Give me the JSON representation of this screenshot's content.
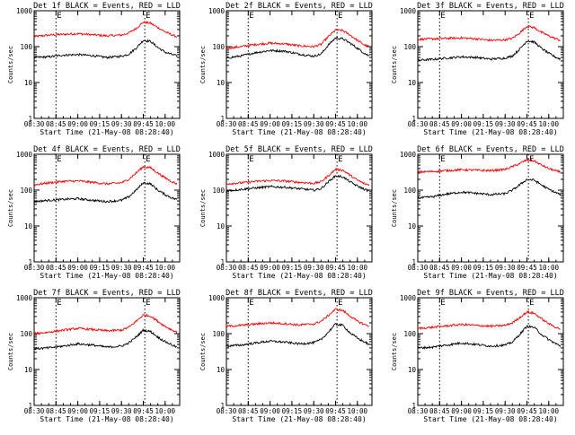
{
  "page": {
    "panel_title_suffix": "BLACK = Events, RED = LLD",
    "xlabel": "Start Time (21-May-08 08:28:40)",
    "ylabel": "Counts/sec",
    "marker_glyph": "E",
    "colors": {
      "events": "#000000",
      "lld": "#ff0000",
      "axis": "#000000",
      "background": "#ffffff"
    }
  },
  "chart_data": [
    {
      "type": "line",
      "panel": 1,
      "title": "Det 1f BLACK = Events, RED = LLD",
      "xlabel": "Start Time (21-May-08 08:28:40)",
      "ylabel": "Counts/sec",
      "yscale": "log",
      "ylim": [
        1,
        1000
      ],
      "xlim": [
        "08:30",
        "10:10"
      ],
      "x_ticks": [
        "08:30",
        "08:45",
        "09:00",
        "09:15",
        "09:30",
        "09:45",
        "10:00"
      ],
      "y_ticks": [
        "1",
        "10",
        "100",
        "1000"
      ],
      "vlines": [
        "08:45",
        "09:46"
      ],
      "markers": [
        "E",
        "E"
      ],
      "x": [
        "08:30",
        "08:40",
        "08:50",
        "09:00",
        "09:10",
        "09:20",
        "09:30",
        "09:35",
        "09:40",
        "09:45",
        "09:50",
        "09:55",
        "10:00",
        "10:05",
        "10:08"
      ],
      "series": [
        {
          "name": "LLD",
          "color": "#ff0000",
          "values": [
            190,
            210,
            220,
            230,
            215,
            200,
            210,
            240,
            320,
            480,
            450,
            340,
            260,
            210,
            190
          ]
        },
        {
          "name": "Events",
          "color": "#000000",
          "values": [
            50,
            52,
            58,
            60,
            56,
            50,
            54,
            62,
            90,
            150,
            140,
            95,
            70,
            60,
            55
          ]
        }
      ]
    },
    {
      "type": "line",
      "panel": 2,
      "title": "Det 2f BLACK = Events, RED = LLD",
      "xlabel": "Start Time (21-May-08 08:28:40)",
      "ylabel": "Counts/sec",
      "yscale": "log",
      "ylim": [
        1,
        1000
      ],
      "xlim": [
        "08:30",
        "10:10"
      ],
      "x_ticks": [
        "08:30",
        "08:45",
        "09:00",
        "09:15",
        "09:30",
        "09:45",
        "10:00"
      ],
      "y_ticks": [
        "1",
        "10",
        "100",
        "1000"
      ],
      "vlines": [
        "08:45",
        "09:46"
      ],
      "markers": [
        "E",
        "E"
      ],
      "x": [
        "08:30",
        "08:40",
        "08:50",
        "09:00",
        "09:10",
        "09:20",
        "09:30",
        "09:35",
        "09:40",
        "09:45",
        "09:50",
        "09:55",
        "10:00",
        "10:05",
        "10:08"
      ],
      "series": [
        {
          "name": "LLD",
          "color": "#ff0000",
          "values": [
            90,
            100,
            115,
            125,
            120,
            105,
            100,
            115,
            190,
            290,
            280,
            210,
            150,
            110,
            100
          ]
        },
        {
          "name": "Events",
          "color": "#000000",
          "values": [
            48,
            55,
            68,
            78,
            75,
            62,
            54,
            62,
            110,
            175,
            165,
            125,
            90,
            65,
            55
          ]
        }
      ]
    },
    {
      "type": "line",
      "panel": 3,
      "title": "Det 3f BLACK = Events, RED = LLD",
      "xlabel": "Start Time (21-May-08 08:28:40)",
      "ylabel": "Counts/sec",
      "yscale": "log",
      "ylim": [
        1,
        1000
      ],
      "xlim": [
        "08:30",
        "10:10"
      ],
      "x_ticks": [
        "08:30",
        "08:45",
        "09:00",
        "09:15",
        "09:30",
        "09:45",
        "10:00"
      ],
      "y_ticks": [
        "1",
        "10",
        "100",
        "1000"
      ],
      "vlines": [
        "08:45",
        "09:46"
      ],
      "markers": [
        "E",
        "E"
      ],
      "x": [
        "08:30",
        "08:40",
        "08:50",
        "09:00",
        "09:10",
        "09:20",
        "09:30",
        "09:35",
        "09:40",
        "09:45",
        "09:50",
        "09:55",
        "10:00",
        "10:05",
        "10:08"
      ],
      "series": [
        {
          "name": "LLD",
          "color": "#ff0000",
          "values": [
            160,
            165,
            170,
            175,
            165,
            150,
            155,
            170,
            240,
            370,
            340,
            250,
            200,
            165,
            150
          ]
        },
        {
          "name": "Events",
          "color": "#000000",
          "values": [
            42,
            44,
            48,
            52,
            50,
            45,
            48,
            55,
            85,
            145,
            135,
            90,
            65,
            50,
            45
          ]
        }
      ]
    },
    {
      "type": "line",
      "panel": 4,
      "title": "Det 4f BLACK = Events, RED = LLD",
      "xlabel": "Start Time (21-May-08 08:28:40)",
      "ylabel": "Counts/sec",
      "yscale": "log",
      "ylim": [
        1,
        1000
      ],
      "xlim": [
        "08:30",
        "10:10"
      ],
      "x_ticks": [
        "08:30",
        "08:45",
        "09:00",
        "09:15",
        "09:30",
        "09:45",
        "10:00"
      ],
      "y_ticks": [
        "1",
        "10",
        "100",
        "1000"
      ],
      "vlines": [
        "08:45",
        "09:46"
      ],
      "markers": [
        "E",
        "E"
      ],
      "x": [
        "08:30",
        "08:40",
        "08:50",
        "09:00",
        "09:10",
        "09:20",
        "09:30",
        "09:35",
        "09:40",
        "09:45",
        "09:50",
        "09:55",
        "10:00",
        "10:05",
        "10:08"
      ],
      "series": [
        {
          "name": "LLD",
          "color": "#ff0000",
          "values": [
            140,
            160,
            175,
            180,
            165,
            150,
            160,
            200,
            300,
            450,
            420,
            300,
            220,
            170,
            150
          ]
        },
        {
          "name": "Events",
          "color": "#000000",
          "values": [
            48,
            52,
            55,
            58,
            52,
            48,
            52,
            65,
            100,
            160,
            150,
            100,
            75,
            60,
            55
          ]
        }
      ]
    },
    {
      "type": "line",
      "panel": 5,
      "title": "Det 5f BLACK = Events, RED = LLD",
      "xlabel": "Start Time (21-May-08 08:28:40)",
      "ylabel": "Counts/sec",
      "yscale": "log",
      "ylim": [
        1,
        1000
      ],
      "xlim": [
        "08:30",
        "10:10"
      ],
      "x_ticks": [
        "08:30",
        "08:45",
        "09:00",
        "09:15",
        "09:30",
        "09:45",
        "10:00"
      ],
      "y_ticks": [
        "1",
        "10",
        "100",
        "1000"
      ],
      "vlines": [
        "08:45",
        "09:46"
      ],
      "markers": [
        "E",
        "E"
      ],
      "x": [
        "08:30",
        "08:40",
        "08:50",
        "09:00",
        "09:10",
        "09:20",
        "09:30",
        "09:35",
        "09:40",
        "09:45",
        "09:50",
        "09:55",
        "10:00",
        "10:05",
        "10:08"
      ],
      "series": [
        {
          "name": "LLD",
          "color": "#ff0000",
          "values": [
            150,
            160,
            175,
            185,
            180,
            165,
            155,
            170,
            250,
            380,
            360,
            260,
            190,
            150,
            140
          ]
        },
        {
          "name": "Events",
          "color": "#000000",
          "values": [
            95,
            105,
            115,
            125,
            120,
            110,
            100,
            110,
            170,
            250,
            235,
            170,
            130,
            105,
            95
          ]
        }
      ]
    },
    {
      "type": "line",
      "panel": 6,
      "title": "Det 6f BLACK = Events, RED = LLD",
      "xlabel": "Start Time (21-May-08 08:28:40)",
      "ylabel": "Counts/sec",
      "yscale": "log",
      "ylim": [
        1,
        1000
      ],
      "xlim": [
        "08:30",
        "10:10"
      ],
      "x_ticks": [
        "08:30",
        "08:45",
        "09:00",
        "09:15",
        "09:30",
        "09:45",
        "10:00"
      ],
      "y_ticks": [
        "1",
        "10",
        "100",
        "1000"
      ],
      "vlines": [
        "08:45",
        "09:46"
      ],
      "markers": [
        "E",
        "E"
      ],
      "x": [
        "08:30",
        "08:40",
        "08:50",
        "09:00",
        "09:10",
        "09:20",
        "09:30",
        "09:35",
        "09:40",
        "09:45",
        "09:50",
        "09:55",
        "10:00",
        "10:05",
        "10:08"
      ],
      "series": [
        {
          "name": "LLD",
          "color": "#ff0000",
          "values": [
            320,
            330,
            350,
            370,
            360,
            350,
            380,
            450,
            550,
            700,
            650,
            500,
            400,
            340,
            320
          ]
        },
        {
          "name": "Events",
          "color": "#000000",
          "values": [
            60,
            65,
            78,
            88,
            82,
            75,
            80,
            100,
            140,
            200,
            190,
            140,
            105,
            85,
            75
          ]
        }
      ]
    },
    {
      "type": "line",
      "panel": 7,
      "title": "Det 7f BLACK = Events, RED = LLD",
      "xlabel": "Start Time (21-May-08 08:28:40)",
      "ylabel": "Counts/sec",
      "yscale": "log",
      "ylim": [
        1,
        1000
      ],
      "xlim": [
        "08:30",
        "10:10"
      ],
      "x_ticks": [
        "08:30",
        "08:45",
        "09:00",
        "09:15",
        "09:30",
        "09:45",
        "10:00"
      ],
      "y_ticks": [
        "1",
        "10",
        "100",
        "1000"
      ],
      "vlines": [
        "08:45",
        "09:46"
      ],
      "markers": [
        "E",
        "E"
      ],
      "x": [
        "08:30",
        "08:40",
        "08:50",
        "09:00",
        "09:10",
        "09:20",
        "09:30",
        "09:35",
        "09:40",
        "09:45",
        "09:50",
        "09:55",
        "10:00",
        "10:05",
        "10:08"
      ],
      "series": [
        {
          "name": "LLD",
          "color": "#ff0000",
          "values": [
            100,
            110,
            125,
            140,
            130,
            120,
            125,
            150,
            220,
            330,
            310,
            220,
            160,
            125,
            110
          ]
        },
        {
          "name": "Events",
          "color": "#000000",
          "values": [
            38,
            40,
            45,
            52,
            48,
            42,
            45,
            55,
            80,
            125,
            115,
            80,
            60,
            48,
            42
          ]
        }
      ]
    },
    {
      "type": "line",
      "panel": 8,
      "title": "Det 8f BLACK = Events, RED = LLD",
      "xlabel": "Start Time (21-May-08 08:28:40)",
      "ylabel": "Counts/sec",
      "yscale": "log",
      "ylim": [
        1,
        1000
      ],
      "xlim": [
        "08:30",
        "10:10"
      ],
      "x_ticks": [
        "08:30",
        "08:45",
        "09:00",
        "09:15",
        "09:30",
        "09:45",
        "10:00"
      ],
      "y_ticks": [
        "1",
        "10",
        "100",
        "1000"
      ],
      "vlines": [
        "08:45",
        "09:46"
      ],
      "markers": [
        "E",
        "E"
      ],
      "x": [
        "08:30",
        "08:40",
        "08:50",
        "09:00",
        "09:10",
        "09:20",
        "09:30",
        "09:35",
        "09:40",
        "09:45",
        "09:50",
        "09:55",
        "10:00",
        "10:05",
        "10:08"
      ],
      "series": [
        {
          "name": "LLD",
          "color": "#ff0000",
          "values": [
            160,
            170,
            185,
            200,
            190,
            175,
            185,
            220,
            320,
            480,
            440,
            310,
            220,
            180,
            165
          ]
        },
        {
          "name": "Events",
          "color": "#000000",
          "values": [
            45,
            48,
            55,
            62,
            58,
            52,
            56,
            68,
            110,
            185,
            170,
            105,
            75,
            58,
            50
          ]
        }
      ]
    },
    {
      "type": "line",
      "panel": 9,
      "title": "Det 9f BLACK = Events, RED = LLD",
      "xlabel": "Start Time (21-May-08 08:28:40)",
      "ylabel": "Counts/sec",
      "yscale": "log",
      "ylim": [
        1,
        1000
      ],
      "xlim": [
        "08:30",
        "10:10"
      ],
      "x_ticks": [
        "08:30",
        "08:45",
        "09:00",
        "09:15",
        "09:30",
        "09:45",
        "10:00"
      ],
      "y_ticks": [
        "1",
        "10",
        "100",
        "1000"
      ],
      "vlines": [
        "08:45",
        "09:46"
      ],
      "markers": [
        "E",
        "E"
      ],
      "x": [
        "08:30",
        "08:40",
        "08:50",
        "09:00",
        "09:10",
        "09:20",
        "09:30",
        "09:35",
        "09:40",
        "09:45",
        "09:50",
        "09:55",
        "10:00",
        "10:05",
        "10:08"
      ],
      "series": [
        {
          "name": "LLD",
          "color": "#ff0000",
          "values": [
            140,
            150,
            165,
            180,
            170,
            160,
            170,
            200,
            280,
            400,
            370,
            260,
            190,
            150,
            135
          ]
        },
        {
          "name": "Events",
          "color": "#000000",
          "values": [
            40,
            42,
            48,
            55,
            50,
            45,
            48,
            58,
            95,
            160,
            150,
            95,
            68,
            52,
            45
          ]
        }
      ]
    }
  ]
}
